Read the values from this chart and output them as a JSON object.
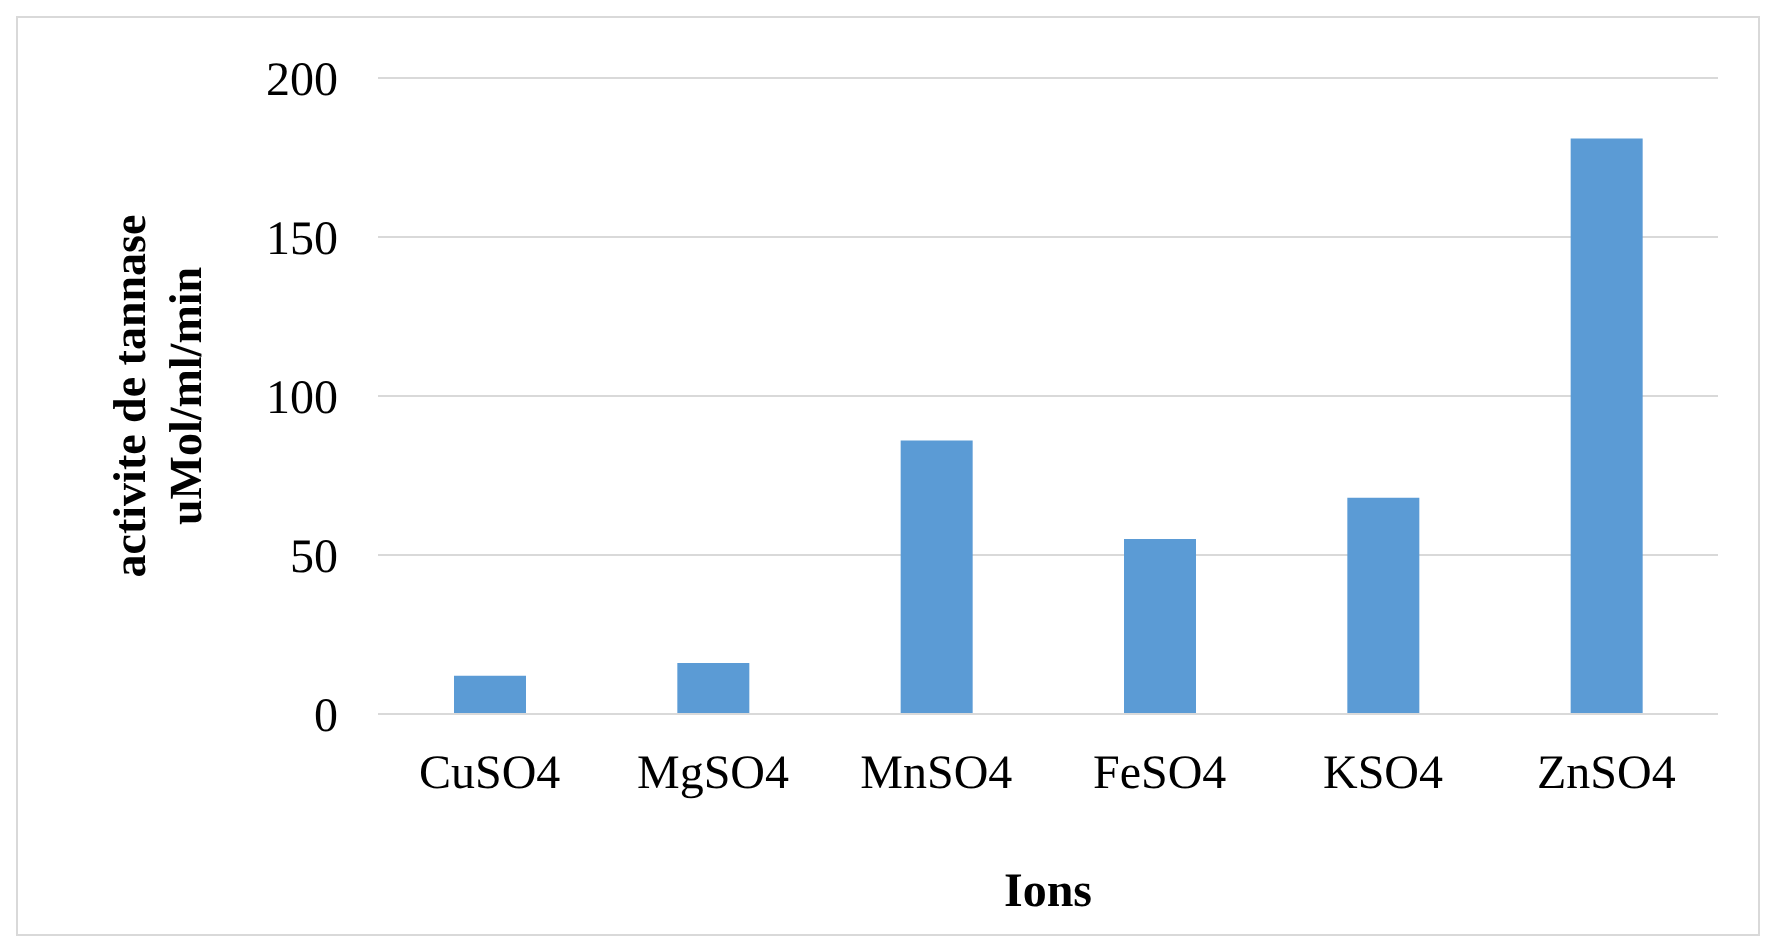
{
  "chart_data": {
    "type": "bar",
    "xlabel": "Ions",
    "ylabel": "activite  de tannase\nuMol/ml/min",
    "categories": [
      "CuSO4",
      "MgSO4",
      "MnSO4",
      "FeSO4",
      "KSO4",
      "ZnSO4"
    ],
    "values": [
      12,
      16,
      86,
      55,
      68,
      181
    ],
    "color": "#5b9bd5",
    "ylim": [
      0,
      200
    ],
    "yticks": [
      0,
      50,
      100,
      150,
      200
    ],
    "grid": "y"
  }
}
